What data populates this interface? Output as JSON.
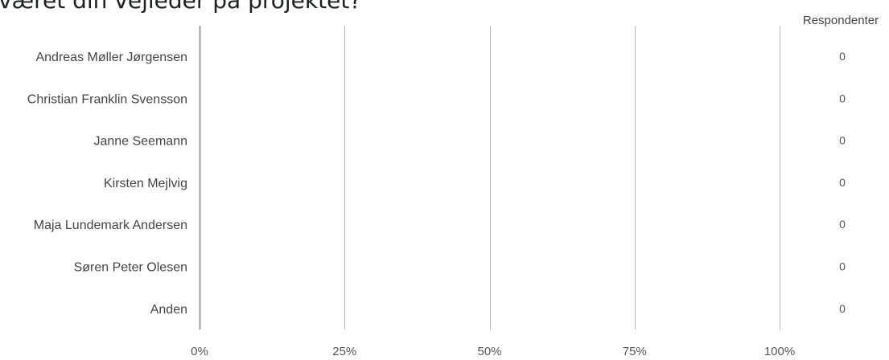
{
  "title": "været din vejleder på projektet?",
  "chart_data": {
    "type": "bar",
    "orientation": "horizontal",
    "categories": [
      "Andreas Møller Jørgensen",
      "Christian Franklin Svensson",
      "Janne Seemann",
      "Kirsten Mejlvig",
      "Maja Lundemark Andersen",
      "Søren Peter Olesen",
      "Anden"
    ],
    "values": [
      0,
      0,
      0,
      0,
      0,
      0,
      0
    ],
    "counts": [
      "0",
      "0",
      "0",
      "0",
      "0",
      "0",
      "0"
    ],
    "count_header": "Respondenter",
    "x_ticks": [
      {
        "value": 0,
        "label": "0%"
      },
      {
        "value": 25,
        "label": "25%"
      },
      {
        "value": 50,
        "label": "50%"
      },
      {
        "value": 75,
        "label": "75%"
      },
      {
        "value": 100,
        "label": "100%"
      }
    ],
    "xlim": [
      0,
      100
    ],
    "grid": true,
    "bar_color": "#4a86c8",
    "grid_color": "#b7b7b7",
    "axis_color": "#9e9e9e"
  }
}
